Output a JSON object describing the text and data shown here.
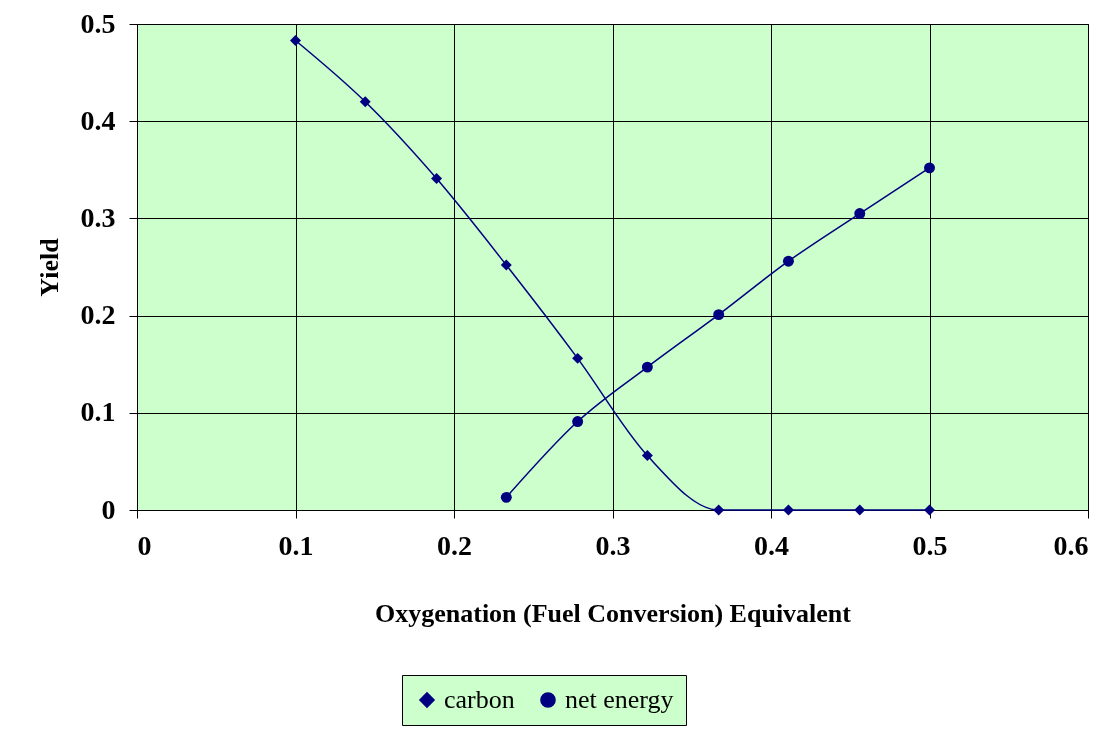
{
  "chart_data": {
    "type": "line",
    "xlabel": "Oxygenation (Fuel Conversion) Equivalent",
    "ylabel": "Yield",
    "xlim": [
      0,
      0.6
    ],
    "xticks": [
      0,
      0.1,
      0.2,
      0.3,
      0.4,
      0.5,
      0.6
    ],
    "ylim": [
      0,
      0.5
    ],
    "yticks": [
      0,
      0.1,
      0.2,
      0.3,
      0.4,
      0.5
    ],
    "grid": true,
    "legend": "bottom",
    "line_style": "solid",
    "series": [
      {
        "name": "carbon",
        "color": "#000080",
        "marker": "diamond",
        "x": [
          0.1,
          0.144,
          0.189,
          0.233,
          0.278,
          0.322,
          0.367,
          0.411,
          0.456,
          0.5
        ],
        "values": [
          0.483,
          0.42,
          0.341,
          0.252,
          0.156,
          0.056,
          0,
          0,
          0,
          0
        ]
      },
      {
        "name": "net energy",
        "color": "#000080",
        "marker": "circle",
        "x": [
          0.233,
          0.278,
          0.322,
          0.367,
          0.411,
          0.456,
          0.5
        ],
        "values": [
          0.013,
          0.091,
          0.147,
          0.201,
          0.256,
          0.305,
          0.352
        ]
      }
    ]
  }
}
